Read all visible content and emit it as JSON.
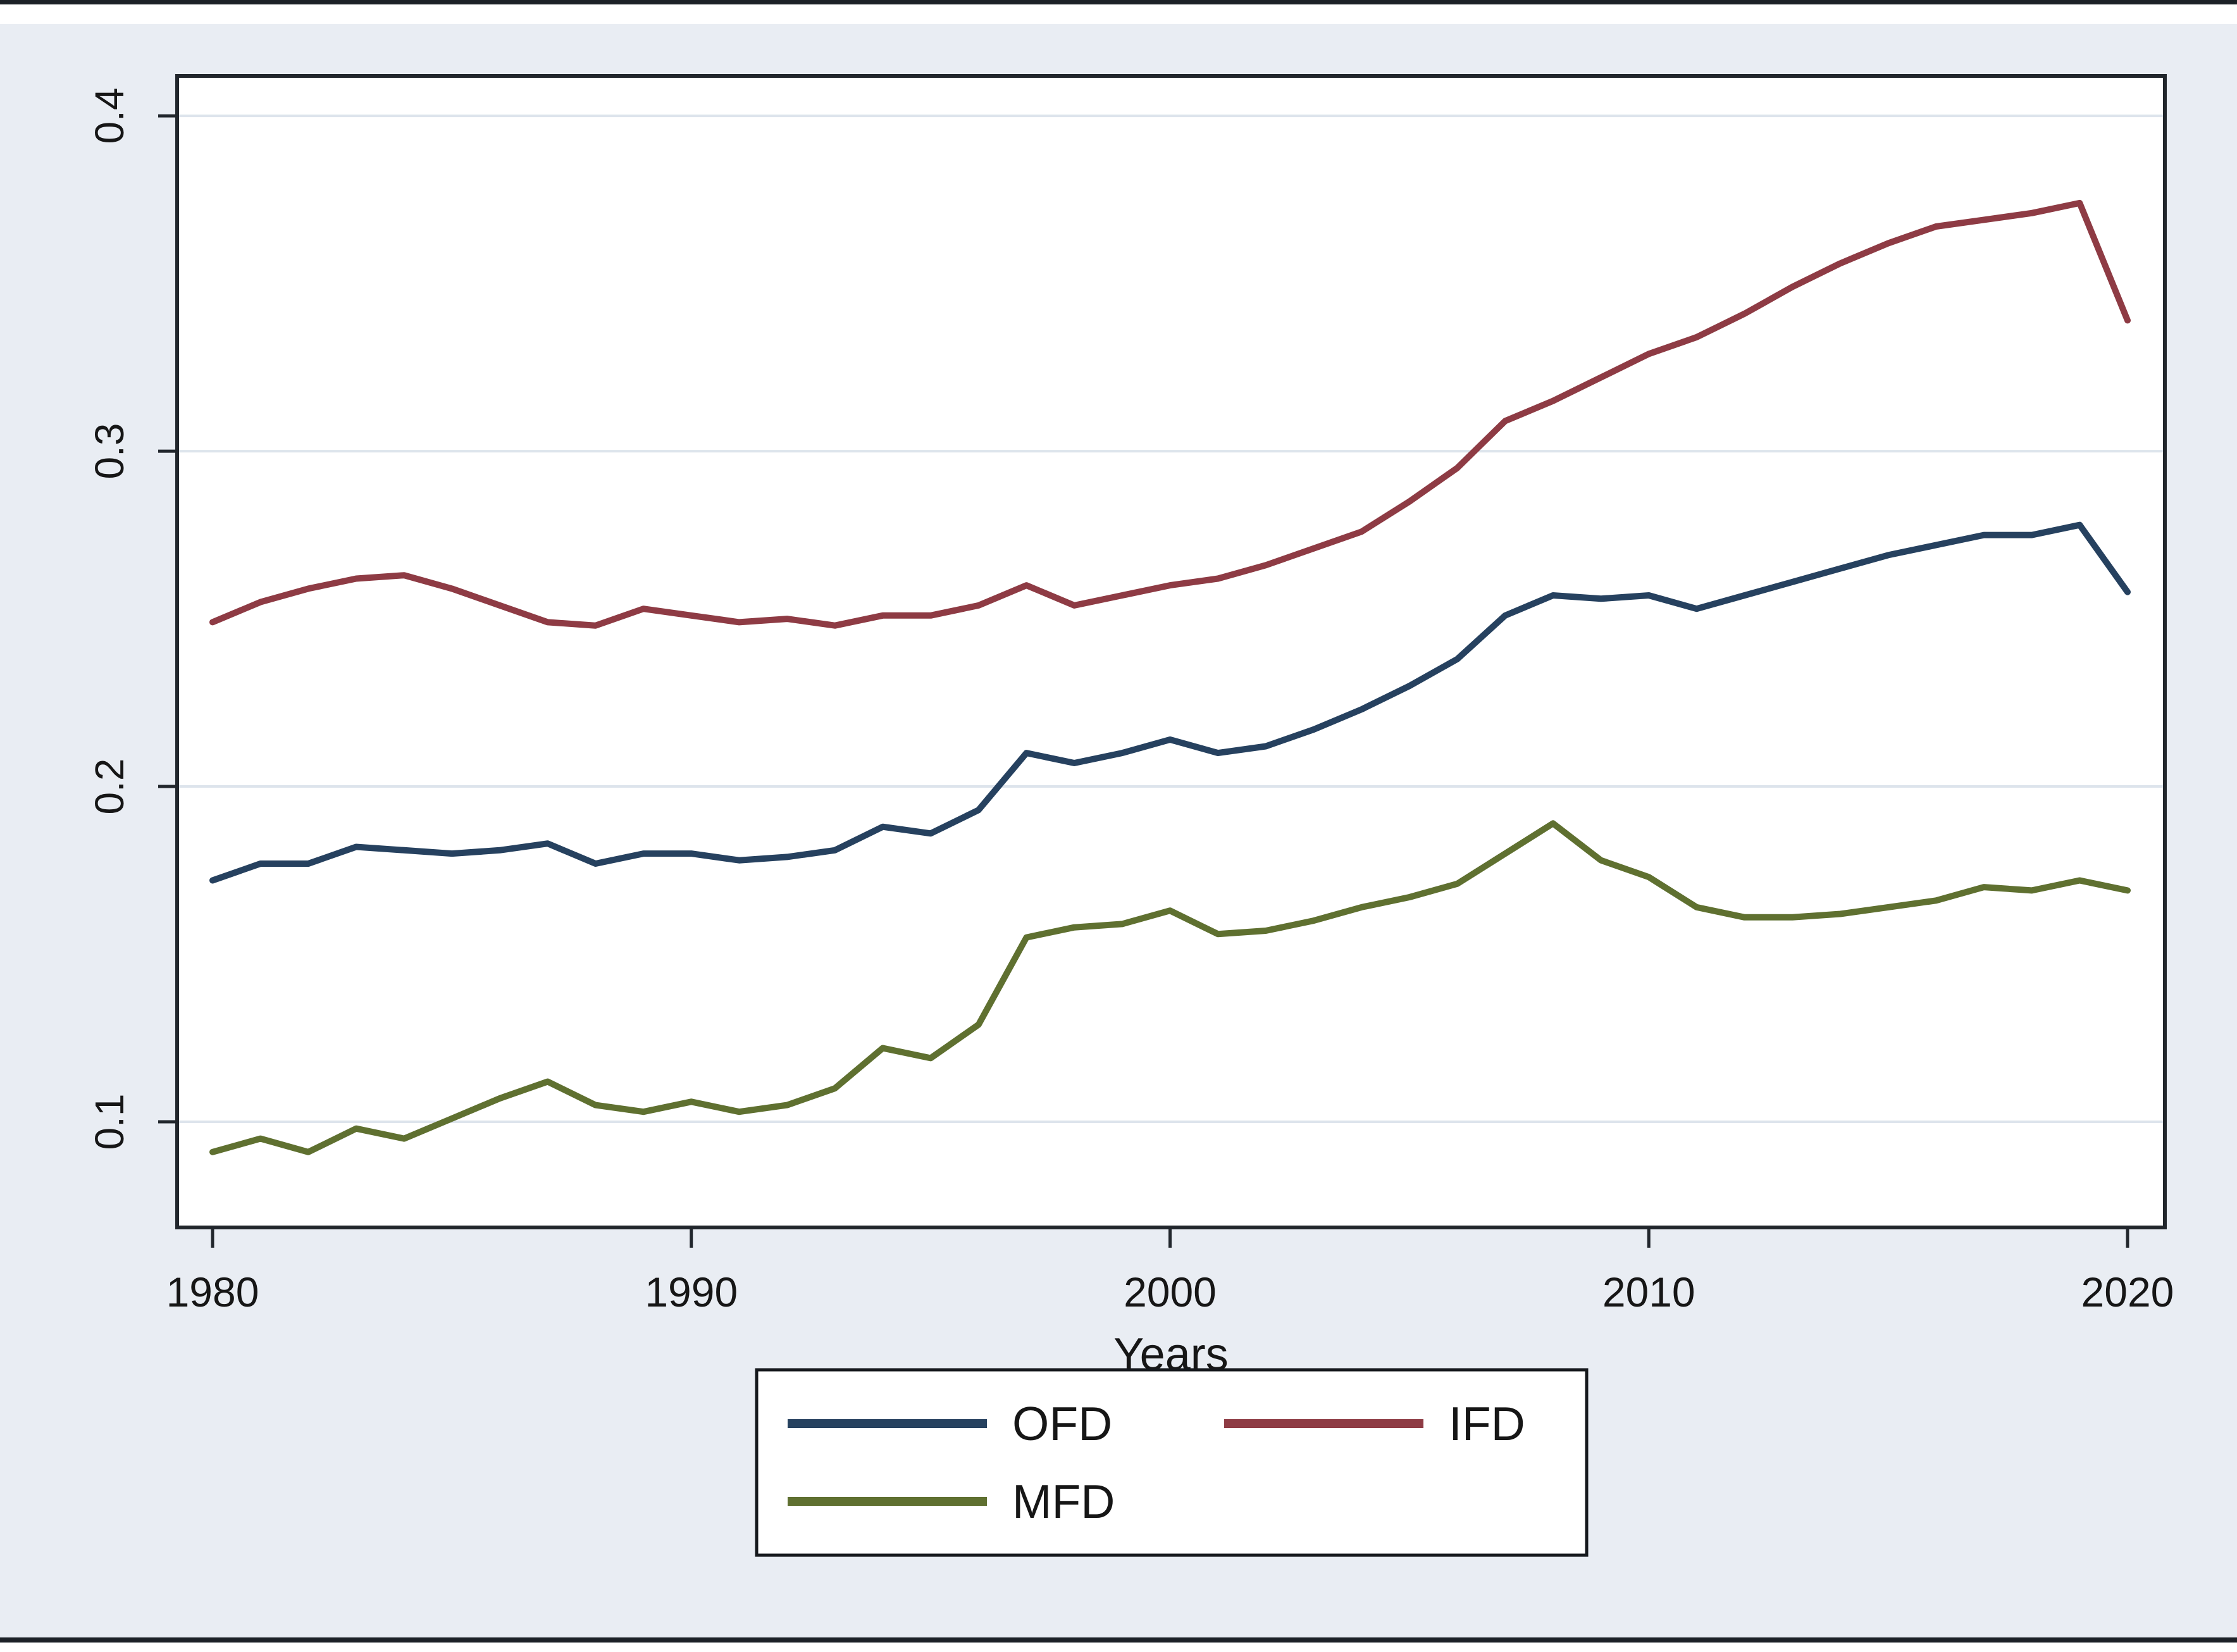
{
  "figure": {
    "background_color": "#e9edf3",
    "plot_background_color": "#ffffff",
    "gridline_color": "#dde4ec",
    "axis_color": "#21262c",
    "tick_label_color": "#161616"
  },
  "chart_data": {
    "type": "line",
    "title": "",
    "xlabel": "Years",
    "ylabel": "",
    "x": [
      1980,
      1981,
      1982,
      1983,
      1984,
      1985,
      1986,
      1987,
      1988,
      1989,
      1990,
      1991,
      1992,
      1993,
      1994,
      1995,
      1996,
      1997,
      1998,
      1999,
      2000,
      2001,
      2002,
      2003,
      2004,
      2005,
      2006,
      2007,
      2008,
      2009,
      2010,
      2011,
      2012,
      2013,
      2014,
      2015,
      2016,
      2017,
      2018,
      2019,
      2020
    ],
    "series": [
      {
        "name": "OFD",
        "color": "#26415f",
        "values": [
          0.172,
          0.177,
          0.177,
          0.182,
          0.181,
          0.18,
          0.181,
          0.183,
          0.177,
          0.18,
          0.18,
          0.178,
          0.179,
          0.181,
          0.188,
          0.186,
          0.193,
          0.21,
          0.207,
          0.21,
          0.214,
          0.21,
          0.212,
          0.217,
          0.223,
          0.23,
          0.238,
          0.251,
          0.257,
          0.256,
          0.257,
          0.253,
          0.257,
          0.261,
          0.265,
          0.269,
          0.272,
          0.275,
          0.275,
          0.278,
          0.258
        ]
      },
      {
        "name": "IFD",
        "color": "#8e3b44",
        "values": [
          0.249,
          0.255,
          0.259,
          0.262,
          0.263,
          0.259,
          0.254,
          0.249,
          0.248,
          0.253,
          0.251,
          0.249,
          0.25,
          0.248,
          0.251,
          0.251,
          0.254,
          0.26,
          0.254,
          0.257,
          0.26,
          0.262,
          0.266,
          0.271,
          0.276,
          0.285,
          0.295,
          0.309,
          0.315,
          0.322,
          0.329,
          0.334,
          0.341,
          0.349,
          0.356,
          0.362,
          0.367,
          0.369,
          0.371,
          0.374,
          0.339
        ]
      },
      {
        "name": "MFD",
        "color": "#5f7030",
        "values": [
          0.091,
          0.095,
          0.091,
          0.098,
          0.095,
          0.101,
          0.107,
          0.112,
          0.105,
          0.103,
          0.106,
          0.103,
          0.105,
          0.11,
          0.122,
          0.119,
          0.129,
          0.155,
          0.158,
          0.159,
          0.163,
          0.156,
          0.157,
          0.16,
          0.164,
          0.167,
          0.171,
          0.18,
          0.189,
          0.178,
          0.173,
          0.164,
          0.161,
          0.161,
          0.162,
          0.164,
          0.166,
          0.17,
          0.169,
          0.172,
          0.169
        ]
      }
    ],
    "xticks": [
      1980,
      1990,
      2000,
      2010,
      2020
    ],
    "yticks": [
      0.1,
      0.2,
      0.3,
      0.4
    ],
    "ytick_labels": [
      "0.1",
      "0.2",
      "0.3",
      "0.4"
    ],
    "xlim": [
      1979.26,
      2020.78
    ],
    "ylim": [
      0.0685,
      0.4119
    ],
    "grid": true,
    "legend_position": "bottom"
  },
  "legend": {
    "entries": [
      {
        "label": "OFD",
        "color": "#26415f"
      },
      {
        "label": "IFD",
        "color": "#8e3b44"
      },
      {
        "label": "MFD",
        "color": "#5f7030"
      }
    ]
  }
}
